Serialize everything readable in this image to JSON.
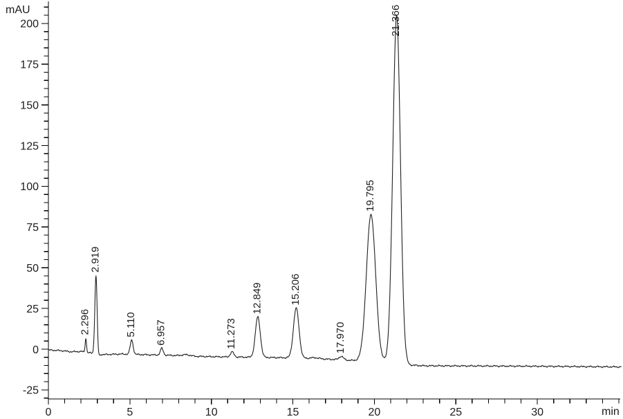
{
  "chart_data": {
    "type": "line",
    "title": "",
    "xlabel": "min",
    "ylabel": "mAU",
    "xlim": [
      0,
      35.15
    ],
    "ylim": [
      -30,
      212
    ],
    "grid": false,
    "legend": null,
    "line_color": "#1f1f1f",
    "axis_color": "#000000",
    "x_axis": {
      "major_ticks": [
        0,
        5,
        10,
        15,
        20,
        25,
        30
      ],
      "major_tick_labels": [
        "0",
        "5",
        "10",
        "15",
        "20",
        "25",
        "30"
      ],
      "minor_tick_step": 1,
      "unit": "min"
    },
    "y_axis": {
      "major_ticks": [
        -25,
        0,
        25,
        50,
        75,
        100,
        125,
        150,
        175,
        200
      ],
      "major_tick_labels": [
        "-25",
        "0",
        "25",
        "50",
        "75",
        "100",
        "125",
        "150",
        "175",
        "200"
      ],
      "minor_tick_step": 5,
      "unit": "mAU"
    },
    "peaks": [
      {
        "label": "2.296",
        "rt": 2.296,
        "apex_mau": 7.0,
        "sigma_min": 0.04
      },
      {
        "label": "2.919",
        "rt": 2.919,
        "apex_mau": 45.4,
        "sigma_min": 0.07
      },
      {
        "label": "5.110",
        "rt": 5.11,
        "apex_mau": 5.6,
        "sigma_min": 0.09
      },
      {
        "label": "6.957",
        "rt": 6.957,
        "apex_mau": 0.5,
        "sigma_min": 0.09
      },
      {
        "label": "11.273",
        "rt": 11.273,
        "apex_mau": -1.7,
        "sigma_min": 0.11
      },
      {
        "label": "12.849",
        "rt": 12.849,
        "apex_mau": 19.8,
        "sigma_min": 0.15
      },
      {
        "label": "15.206",
        "rt": 15.206,
        "apex_mau": 25.2,
        "sigma_min": 0.17
      },
      {
        "label": "17.970",
        "rt": 17.97,
        "apex_mau": -4.4,
        "sigma_min": 0.13
      },
      {
        "label": "19.795",
        "rt": 19.795,
        "apex_mau": 82.8,
        "sigma_min": 0.28
      },
      {
        "label": "21.366",
        "rt": 21.366,
        "apex_mau": 205.0,
        "sigma_min": 0.23,
        "label_base_mau": 192
      }
    ],
    "baseline_mau": [
      [
        0.0,
        -0.5
      ],
      [
        0.8,
        -0.9
      ],
      [
        1.4,
        -1.6
      ],
      [
        2.0,
        -1.4
      ],
      [
        2.6,
        -2.4
      ],
      [
        3.4,
        -3.3
      ],
      [
        4.5,
        -3.0
      ],
      [
        6.0,
        -3.4
      ],
      [
        7.5,
        -3.8
      ],
      [
        9.0,
        -4.4
      ],
      [
        10.5,
        -4.7
      ],
      [
        12.0,
        -4.9
      ],
      [
        13.5,
        -5.1
      ],
      [
        15.0,
        -5.3
      ],
      [
        16.5,
        -5.9
      ],
      [
        17.5,
        -6.3
      ],
      [
        18.6,
        -6.9
      ],
      [
        19.5,
        -7.1
      ],
      [
        20.6,
        -7.7
      ],
      [
        21.0,
        -7.9
      ],
      [
        21.9,
        -9.6
      ],
      [
        23.0,
        -10.2
      ],
      [
        26.0,
        -10.3
      ],
      [
        30.0,
        -10.5
      ],
      [
        35.15,
        -10.9
      ]
    ],
    "unlabeled_features": [
      {
        "rt": 3.06,
        "amp_mau": -1.9,
        "sigma_min": 0.08
      },
      {
        "rt": 8.45,
        "amp_mau": 0.8,
        "sigma_min": 0.25
      },
      {
        "rt": 16.35,
        "amp_mau": 0.6,
        "sigma_min": 0.25
      }
    ]
  }
}
